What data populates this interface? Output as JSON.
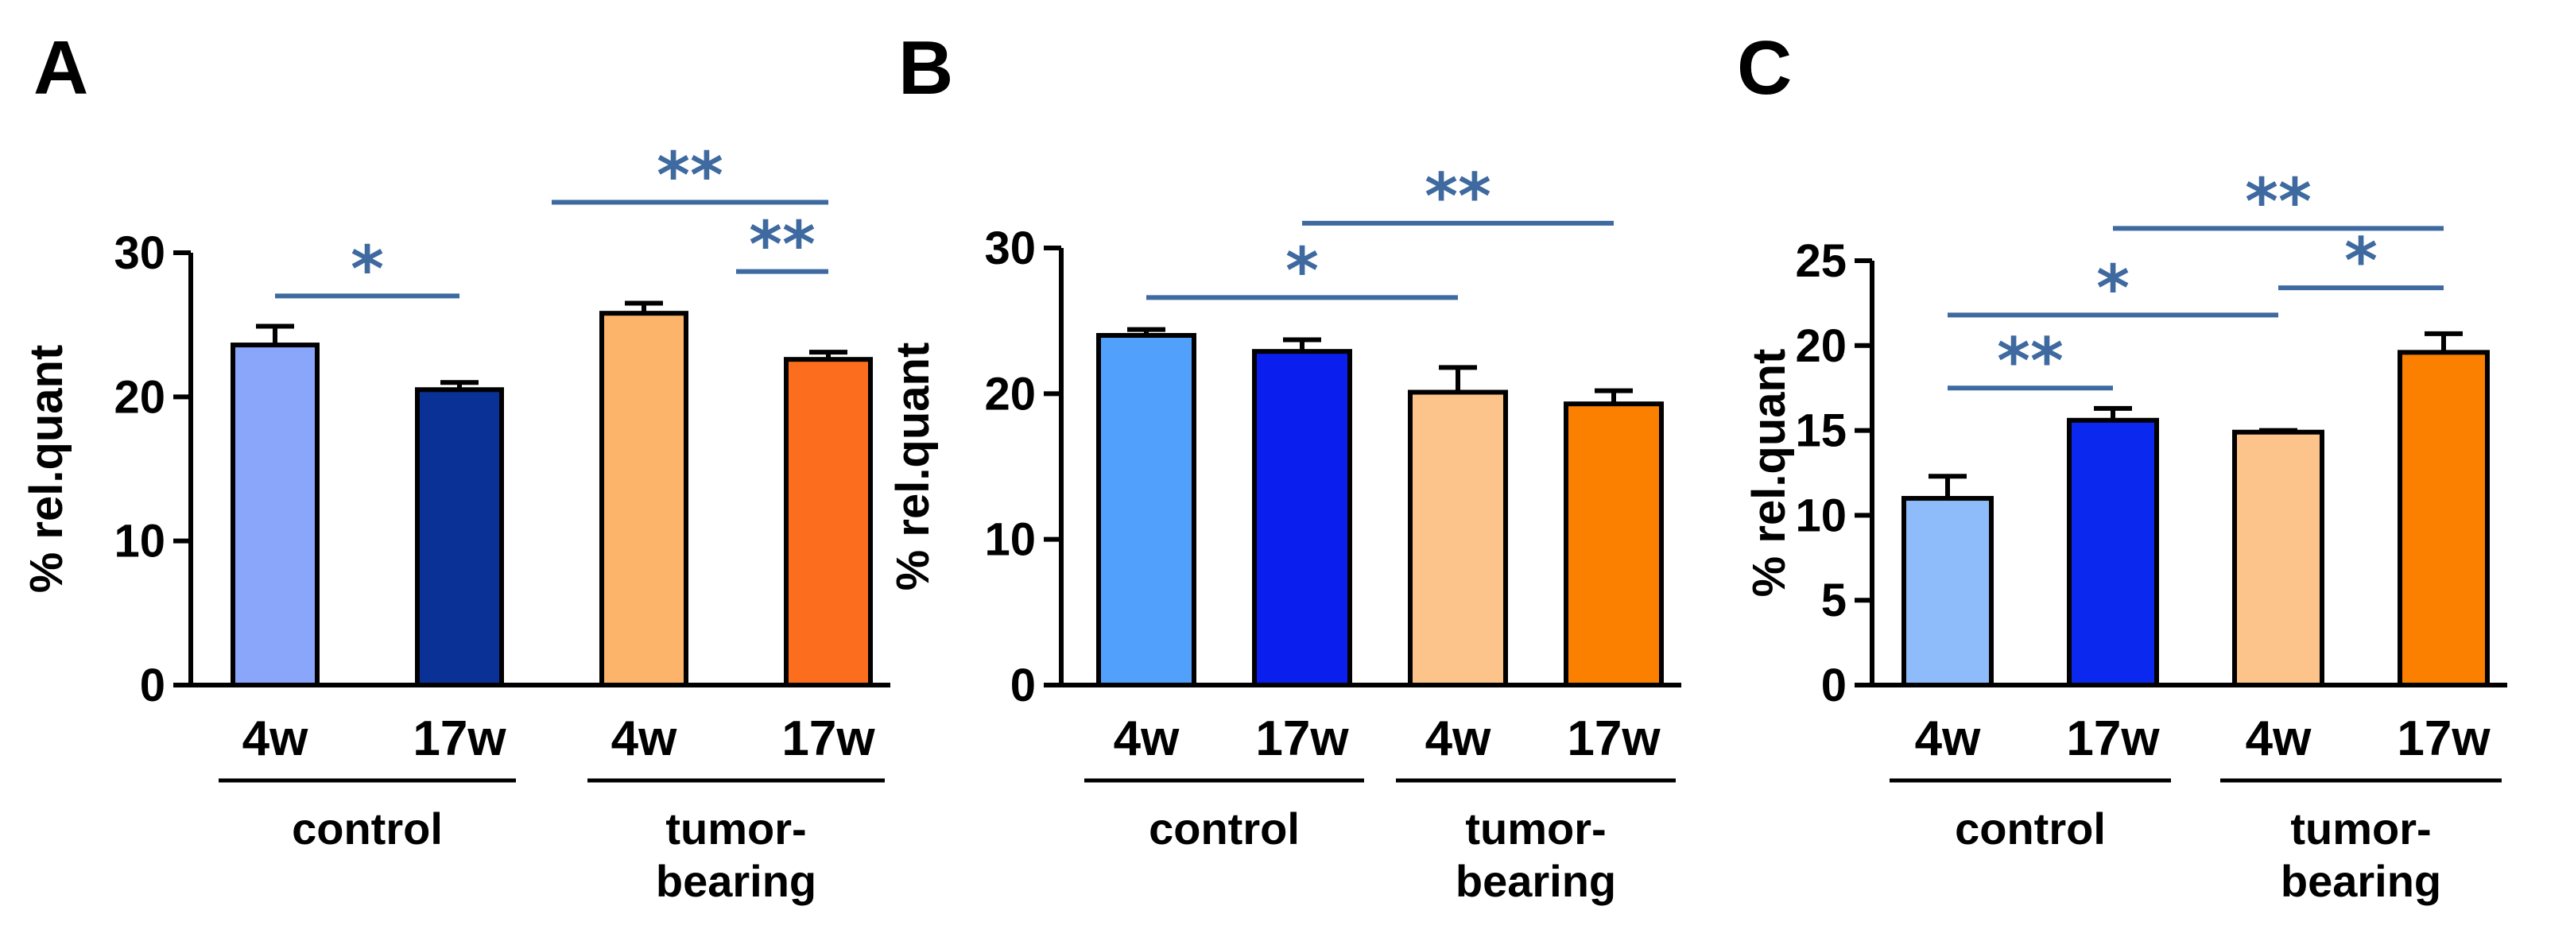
{
  "colors": {
    "significance": "#3e6aa0",
    "axis": "#000000"
  },
  "chart_data": [
    {
      "type": "bar",
      "panel": "A",
      "ylabel": "% rel.quant",
      "ylim": [
        0,
        30
      ],
      "yticks": [
        0,
        10,
        20,
        30
      ],
      "categories": [
        "4w",
        "17w",
        "4w",
        "17w"
      ],
      "groups": [
        {
          "label_lines": [
            "control"
          ],
          "start": 0,
          "end": 1
        },
        {
          "label_lines": [
            "tumor-",
            "bearing"
          ],
          "start": 2,
          "end": 3
        }
      ],
      "values": [
        23.6,
        20.5,
        25.8,
        22.6
      ],
      "errors": [
        1.3,
        0.5,
        0.7,
        0.5
      ],
      "colors": [
        "#8aa6fa",
        "#0a3296",
        "#fcb46a",
        "#fc6e1e"
      ],
      "significance": [
        {
          "from": 0,
          "to": 1,
          "label": "*",
          "y": 27.0
        },
        {
          "from": 1.5,
          "to": 3,
          "label": "**",
          "y": 33.5
        },
        {
          "from": 2.5,
          "to": 3,
          "label": "**",
          "y": 28.7
        }
      ]
    },
    {
      "type": "bar",
      "panel": "B",
      "ylabel": "% rel.quant",
      "ylim": [
        0,
        30
      ],
      "yticks": [
        0,
        10,
        20,
        30
      ],
      "categories": [
        "4w",
        "17w",
        "4w",
        "17w"
      ],
      "groups": [
        {
          "label_lines": [
            "control"
          ],
          "start": 0,
          "end": 1
        },
        {
          "label_lines": [
            "tumor-",
            "bearing"
          ],
          "start": 2,
          "end": 3
        }
      ],
      "values": [
        24.0,
        22.9,
        20.1,
        19.3
      ],
      "errors": [
        0.4,
        0.8,
        1.7,
        0.9
      ],
      "colors": [
        "#50a0fc",
        "#0a1eee",
        "#fcc48a",
        "#fc8000"
      ],
      "significance": [
        {
          "from": 0,
          "to": 2,
          "label": "*",
          "y": 26.6
        },
        {
          "from": 1,
          "to": 3,
          "label": "**",
          "y": 31.7
        }
      ]
    },
    {
      "type": "bar",
      "panel": "C",
      "ylabel": "% rel.quant",
      "ylim": [
        0,
        25
      ],
      "yticks": [
        0,
        5,
        10,
        15,
        20,
        25
      ],
      "categories": [
        "4w",
        "17w",
        "4w",
        "17w"
      ],
      "groups": [
        {
          "label_lines": [
            "control"
          ],
          "start": 0,
          "end": 1
        },
        {
          "label_lines": [
            "tumor-",
            "bearing"
          ],
          "start": 2,
          "end": 3
        }
      ],
      "values": [
        11.0,
        15.6,
        14.9,
        19.6
      ],
      "errors": [
        1.3,
        0.7,
        0.1,
        1.1
      ],
      "colors": [
        "#8ebcfa",
        "#0a28ee",
        "#fcc48a",
        "#fc8000"
      ],
      "significance": [
        {
          "from": 0,
          "to": 1,
          "label": "**",
          "y": 17.5
        },
        {
          "from": 0,
          "to": 2,
          "label": "*",
          "y": 21.8
        },
        {
          "from": 2,
          "to": 3,
          "label": "*",
          "y": 23.4
        },
        {
          "from": 1,
          "to": 3,
          "label": "**",
          "y": 26.9
        }
      ]
    }
  ]
}
